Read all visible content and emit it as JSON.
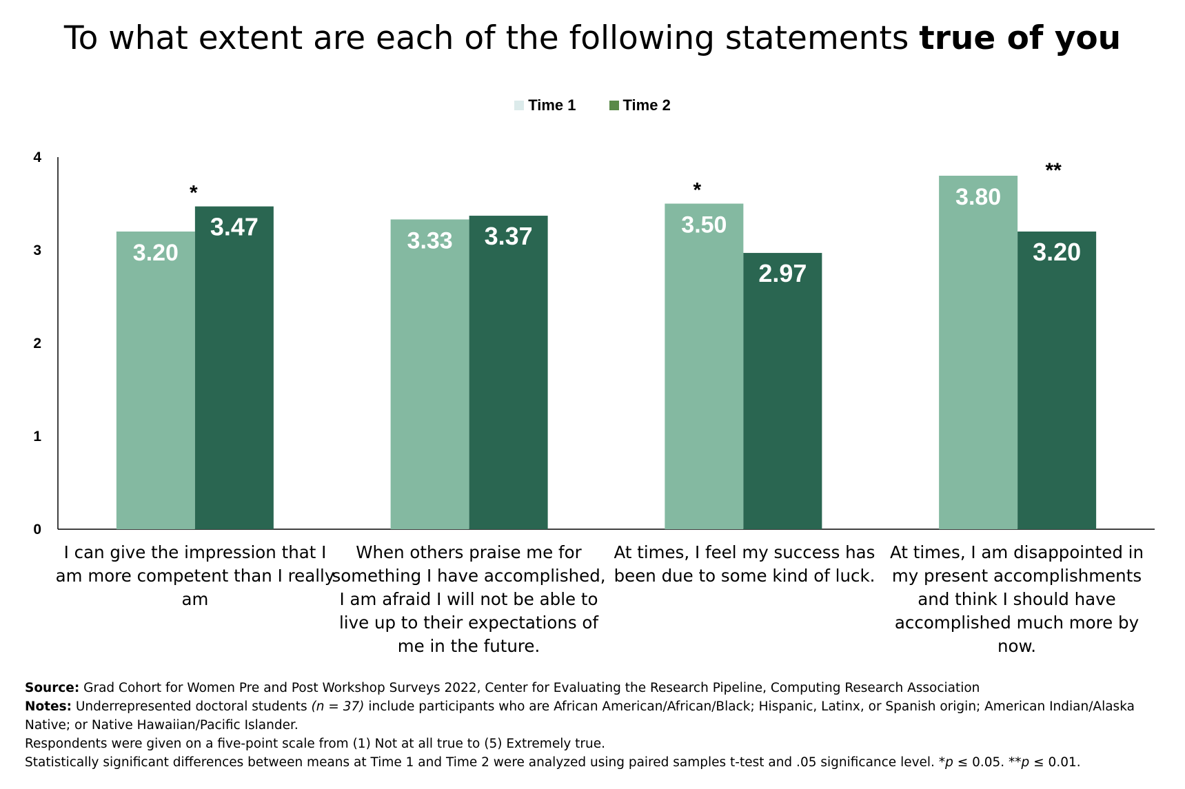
{
  "chart_data": {
    "type": "bar",
    "title_prefix": "To what extent are each of the following statements ",
    "title_bold": "true of you",
    "ylim": [
      0,
      4
    ],
    "yticks": [
      "0",
      "1",
      "2",
      "3",
      "4"
    ],
    "legend_position": "top",
    "grid": false,
    "categories": [
      "I can give the impression that I am more competent than I really am",
      "When others praise me for something I have accomplished, I am afraid I will not be able to live up to their expectations of me in the future.",
      "At times, I feel my success has been due to some kind of luck.",
      "At times, I am disappointed in my present accomplishments and think I should have accomplished much more by now."
    ],
    "series": [
      {
        "name": "Time 1",
        "values": [
          3.2,
          3.33,
          3.5,
          3.8
        ],
        "labels": [
          "3.20",
          "3.33",
          "3.50",
          "3.80"
        ],
        "color": "#84b9a1",
        "legend_color": "#dcebeb"
      },
      {
        "name": "Time 2",
        "values": [
          3.47,
          3.37,
          2.97,
          3.2
        ],
        "labels": [
          "3.47",
          "3.37",
          "2.97",
          "3.20"
        ],
        "color": "#2a6651",
        "legend_color": "#5a8a48"
      }
    ],
    "significance": [
      "*",
      "",
      "*",
      "**"
    ]
  },
  "footnotes": {
    "source_label": "Source:",
    "source_text": " Grad Cohort for Women Pre and Post Workshop Surveys 2022, Center for Evaluating the Research Pipeline, Computing Research Association",
    "notes_label": "Notes:",
    "notes_text_1": " Underrepresented doctoral students ",
    "notes_n": "(n = 37)",
    "notes_text_2": " include participants who are African American/African/Black; Hispanic, Latinx, or Spanish origin; American Indian/Alaska Native; or Native Hawaiian/Pacific Islander.",
    "scale_note": "Respondents were given on a five-point scale from (1) Not at all true to (5) Extremely true.",
    "sig_note_1": "Statistically significant differences between means at Time 1 and Time 2 were analyzed using paired samples t-test and .05 significance level. *",
    "sig_p1": "p",
    "sig_note_2": " ≤ 0.05. **",
    "sig_p2": "p",
    "sig_note_3": " ≤ 0.01."
  }
}
